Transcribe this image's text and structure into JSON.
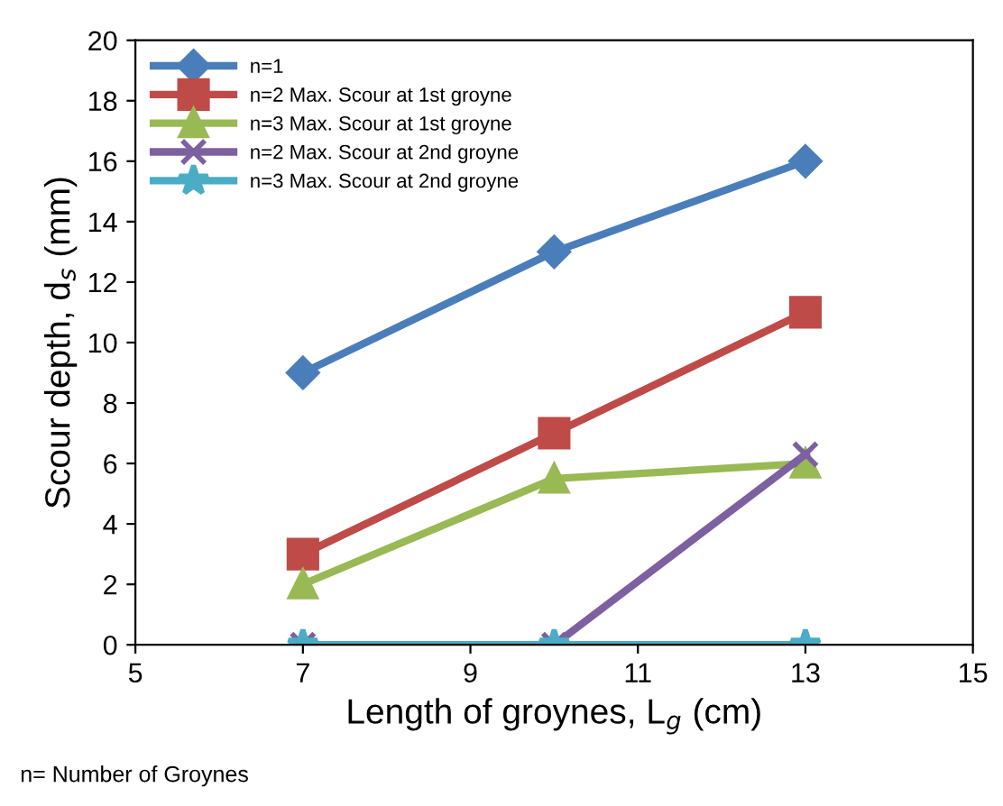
{
  "chart_data": {
    "type": "line",
    "x": [
      7,
      10,
      13
    ],
    "xlabel": "Length of groynes, L$_{g}$ (cm)",
    "ylabel": "Scour depth, d$_{s}$ (mm)",
    "xlim": [
      5,
      15
    ],
    "xticks": [
      5,
      7,
      9,
      11,
      13,
      15
    ],
    "ylim": [
      0,
      20
    ],
    "yticks": [
      0,
      2,
      4,
      6,
      8,
      10,
      12,
      14,
      16,
      18,
      20
    ],
    "legend": "top left",
    "annotations": [
      "n= Number of Groynes"
    ],
    "series": [
      {
        "name": "n=1",
        "color": "#4a7ebb",
        "marker": "diamond",
        "values": [
          9,
          13,
          16
        ]
      },
      {
        "name": "n=2 Max. Scour at 1st groyne",
        "color": "#be4b48",
        "marker": "square",
        "values": [
          3,
          7,
          11
        ]
      },
      {
        "name": "n=3 Max. Scour at 1st groyne",
        "color": "#98b954",
        "marker": "triangle",
        "values": [
          2,
          5.5,
          6
        ]
      },
      {
        "name": "n=2 Max. Scour at 2nd groyne",
        "color": "#7d60a0",
        "marker": "cross",
        "values": [
          0,
          0,
          6.3
        ]
      },
      {
        "name": "n=3 Max. Scour at 2nd groyne",
        "color": "#4bacc6",
        "marker": "star",
        "values": [
          0,
          0,
          0
        ]
      }
    ]
  }
}
